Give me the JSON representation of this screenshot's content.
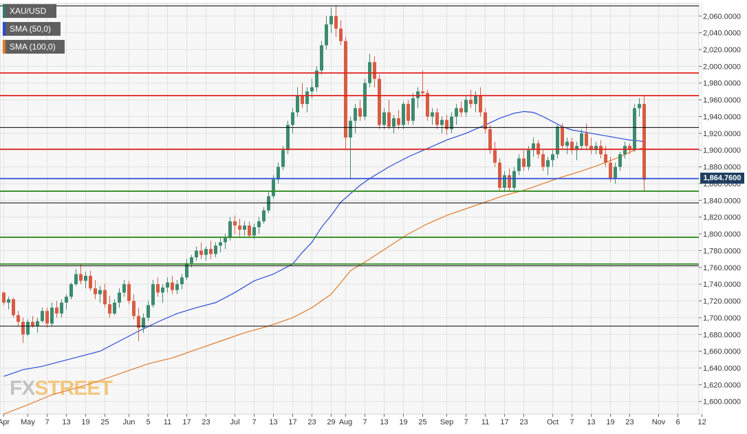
{
  "legend": {
    "items": [
      {
        "label": "XAU/USD",
        "color": "#2f7d6b"
      },
      {
        "label": "SMA (50,0)",
        "color": "#2b4bd6"
      },
      {
        "label": "SMA (100,0)",
        "color": "#e07a2a"
      }
    ]
  },
  "price_tag": {
    "label": "1,864.7600"
  },
  "logo": {
    "text_a": "FX",
    "text_b": "STREET"
  },
  "chart_data": {
    "type": "candlestick",
    "title": "",
    "xlabel": "",
    "ylabel": "",
    "ylim": [
      1585,
      2075
    ],
    "y_ticks": [
      {
        "value": 2060,
        "label": "2,060.0000"
      },
      {
        "value": 2040,
        "label": "2,040.0000"
      },
      {
        "value": 2020,
        "label": "2,020.0000"
      },
      {
        "value": 2000,
        "label": "2,000.0000"
      },
      {
        "value": 1980,
        "label": "1,980.0000"
      },
      {
        "value": 1960,
        "label": "1,960.0000"
      },
      {
        "value": 1940,
        "label": "1,940.0000"
      },
      {
        "value": 1920,
        "label": "1,920.0000"
      },
      {
        "value": 1900,
        "label": "1,900.0000"
      },
      {
        "value": 1880,
        "label": "1,880.0000"
      },
      {
        "value": 1860,
        "label": "1,860.0000"
      },
      {
        "value": 1840,
        "label": "1,840.0000"
      },
      {
        "value": 1820,
        "label": "1,820.0000"
      },
      {
        "value": 1800,
        "label": "1,800.0000"
      },
      {
        "value": 1780,
        "label": "1,780.0000"
      },
      {
        "value": 1760,
        "label": "1,760.0000"
      },
      {
        "value": 1740,
        "label": "1,740.0000"
      },
      {
        "value": 1720,
        "label": "1,720.0000"
      },
      {
        "value": 1700,
        "label": "1,700.0000"
      },
      {
        "value": 1680,
        "label": "1,680.0000"
      },
      {
        "value": 1660,
        "label": "1,660.0000"
      },
      {
        "value": 1640,
        "label": "1,640.0000"
      },
      {
        "value": 1620,
        "label": "1,620.0000"
      },
      {
        "value": 1600,
        "label": "1,600.0000"
      }
    ],
    "x_ticks": [
      {
        "label": "Apr",
        "i": 0
      },
      {
        "label": "May",
        "i": 5
      },
      {
        "label": "7",
        "i": 9
      },
      {
        "label": "13",
        "i": 13
      },
      {
        "label": "19",
        "i": 17
      },
      {
        "label": "25",
        "i": 21
      },
      {
        "label": "Jun",
        "i": 26
      },
      {
        "label": "5",
        "i": 30
      },
      {
        "label": "11",
        "i": 34
      },
      {
        "label": "17",
        "i": 38
      },
      {
        "label": "23",
        "i": 42
      },
      {
        "label": "Jul",
        "i": 48
      },
      {
        "label": "7",
        "i": 52
      },
      {
        "label": "13",
        "i": 56
      },
      {
        "label": "17",
        "i": 60
      },
      {
        "label": "23",
        "i": 64
      },
      {
        "label": "29",
        "i": 68
      },
      {
        "label": "Aug",
        "i": 71
      },
      {
        "label": "7",
        "i": 75
      },
      {
        "label": "13",
        "i": 79
      },
      {
        "label": "19",
        "i": 83
      },
      {
        "label": "25",
        "i": 87
      },
      {
        "label": "Sep",
        "i": 92
      },
      {
        "label": "7",
        "i": 96
      },
      {
        "label": "11",
        "i": 100
      },
      {
        "label": "17",
        "i": 104
      },
      {
        "label": "23",
        "i": 108
      },
      {
        "label": "Oct",
        "i": 114
      },
      {
        "label": "7",
        "i": 118
      },
      {
        "label": "13",
        "i": 122
      },
      {
        "label": "19",
        "i": 126
      },
      {
        "label": "23",
        "i": 130
      },
      {
        "label": "Nov",
        "i": 136
      },
      {
        "label": "6",
        "i": 140
      },
      {
        "label": "12",
        "i": 145
      }
    ],
    "n_slots": 148,
    "horizontal_levels": [
      {
        "value": 2072,
        "color": "#000000"
      },
      {
        "value": 1992,
        "color": "#e0201c"
      },
      {
        "value": 1965,
        "color": "#e0201c"
      },
      {
        "value": 1927,
        "color": "#000000"
      },
      {
        "value": 1901,
        "color": "#e0201c"
      },
      {
        "value": 1866,
        "color": "#2b4bd6"
      },
      {
        "value": 1851,
        "color": "#2f8a1e"
      },
      {
        "value": 1837,
        "color": "#000000"
      },
      {
        "value": 1796,
        "color": "#2f8a1e"
      },
      {
        "value": 1764,
        "color": "#2f8a1e"
      },
      {
        "value": 1762,
        "color": "#000000"
      },
      {
        "value": 1690,
        "color": "#000000"
      }
    ],
    "candles": [
      [
        0,
        1730,
        1731,
        1715,
        1718
      ],
      [
        1,
        1718,
        1725,
        1710,
        1722
      ],
      [
        2,
        1722,
        1724,
        1700,
        1703
      ],
      [
        3,
        1703,
        1708,
        1690,
        1695
      ],
      [
        4,
        1695,
        1700,
        1670,
        1680
      ],
      [
        5,
        1680,
        1698,
        1678,
        1695
      ],
      [
        6,
        1695,
        1702,
        1688,
        1690
      ],
      [
        7,
        1690,
        1700,
        1682,
        1696
      ],
      [
        8,
        1696,
        1712,
        1694,
        1708
      ],
      [
        9,
        1708,
        1712,
        1688,
        1693
      ],
      [
        10,
        1693,
        1718,
        1690,
        1712
      ],
      [
        11,
        1712,
        1720,
        1700,
        1705
      ],
      [
        12,
        1705,
        1722,
        1700,
        1718
      ],
      [
        13,
        1718,
        1728,
        1710,
        1725
      ],
      [
        14,
        1725,
        1742,
        1722,
        1740
      ],
      [
        15,
        1740,
        1758,
        1738,
        1752
      ],
      [
        16,
        1752,
        1765,
        1740,
        1744
      ],
      [
        17,
        1744,
        1755,
        1735,
        1750
      ],
      [
        18,
        1750,
        1756,
        1732,
        1735
      ],
      [
        19,
        1735,
        1745,
        1722,
        1728
      ],
      [
        20,
        1728,
        1738,
        1718,
        1733
      ],
      [
        21,
        1733,
        1740,
        1712,
        1716
      ],
      [
        22,
        1716,
        1726,
        1700,
        1705
      ],
      [
        23,
        1705,
        1722,
        1703,
        1718
      ],
      [
        24,
        1718,
        1735,
        1712,
        1730
      ],
      [
        25,
        1730,
        1745,
        1725,
        1740
      ],
      [
        26,
        1740,
        1744,
        1716,
        1720
      ],
      [
        27,
        1720,
        1728,
        1698,
        1702
      ],
      [
        28,
        1702,
        1712,
        1672,
        1688
      ],
      [
        29,
        1688,
        1705,
        1682,
        1700
      ],
      [
        30,
        1700,
        1720,
        1696,
        1715
      ],
      [
        31,
        1715,
        1745,
        1712,
        1740
      ],
      [
        32,
        1740,
        1748,
        1725,
        1730
      ],
      [
        33,
        1730,
        1740,
        1718,
        1736
      ],
      [
        34,
        1736,
        1748,
        1730,
        1742
      ],
      [
        35,
        1742,
        1750,
        1728,
        1733
      ],
      [
        36,
        1733,
        1745,
        1728,
        1740
      ],
      [
        37,
        1740,
        1752,
        1734,
        1748
      ],
      [
        38,
        1748,
        1770,
        1745,
        1765
      ],
      [
        39,
        1765,
        1775,
        1760,
        1772
      ],
      [
        40,
        1772,
        1785,
        1768,
        1780
      ],
      [
        41,
        1780,
        1790,
        1770,
        1775
      ],
      [
        42,
        1775,
        1785,
        1768,
        1782
      ],
      [
        43,
        1782,
        1792,
        1770,
        1776
      ],
      [
        44,
        1776,
        1790,
        1772,
        1786
      ],
      [
        45,
        1786,
        1795,
        1778,
        1790
      ],
      [
        46,
        1790,
        1800,
        1782,
        1795
      ],
      [
        47,
        1795,
        1820,
        1792,
        1815
      ],
      [
        48,
        1815,
        1822,
        1800,
        1810
      ],
      [
        49,
        1810,
        1818,
        1796,
        1805
      ],
      [
        50,
        1805,
        1815,
        1798,
        1810
      ],
      [
        51,
        1810,
        1815,
        1795,
        1798
      ],
      [
        52,
        1798,
        1812,
        1794,
        1808
      ],
      [
        53,
        1808,
        1820,
        1800,
        1815
      ],
      [
        54,
        1815,
        1832,
        1812,
        1828
      ],
      [
        55,
        1828,
        1850,
        1825,
        1845
      ],
      [
        56,
        1845,
        1870,
        1842,
        1865
      ],
      [
        57,
        1865,
        1885,
        1860,
        1880
      ],
      [
        58,
        1880,
        1905,
        1876,
        1900
      ],
      [
        59,
        1900,
        1935,
        1895,
        1930
      ],
      [
        60,
        1930,
        1950,
        1920,
        1945
      ],
      [
        61,
        1945,
        1975,
        1940,
        1965
      ],
      [
        62,
        1965,
        1980,
        1950,
        1955
      ],
      [
        63,
        1955,
        1975,
        1945,
        1970
      ],
      [
        64,
        1970,
        1985,
        1962,
        1975
      ],
      [
        65,
        1975,
        2000,
        1970,
        1995
      ],
      [
        66,
        1995,
        2030,
        1990,
        2025
      ],
      [
        67,
        2025,
        2060,
        2020,
        2050
      ],
      [
        68,
        2050,
        2070,
        2040,
        2060
      ],
      [
        69,
        2060,
        2073,
        2035,
        2045
      ],
      [
        70,
        2045,
        2055,
        2025,
        2030
      ],
      [
        71,
        2030,
        2035,
        1900,
        1915
      ],
      [
        72,
        1915,
        1940,
        1865,
        1935
      ],
      [
        73,
        1935,
        1955,
        1920,
        1950
      ],
      [
        74,
        1950,
        1960,
        1935,
        1940
      ],
      [
        75,
        1940,
        1985,
        1936,
        1980
      ],
      [
        76,
        1980,
        2015,
        1975,
        2005
      ],
      [
        77,
        2005,
        2012,
        1975,
        1985
      ],
      [
        78,
        1985,
        1990,
        1925,
        1930
      ],
      [
        79,
        1930,
        1950,
        1925,
        1945
      ],
      [
        80,
        1945,
        1960,
        1925,
        1928
      ],
      [
        81,
        1928,
        1942,
        1920,
        1938
      ],
      [
        82,
        1938,
        1948,
        1925,
        1930
      ],
      [
        83,
        1930,
        1958,
        1925,
        1955
      ],
      [
        84,
        1955,
        1960,
        1930,
        1935
      ],
      [
        85,
        1935,
        1968,
        1930,
        1962
      ],
      [
        86,
        1962,
        1975,
        1950,
        1970
      ],
      [
        87,
        1970,
        1995,
        1965,
        1968
      ],
      [
        88,
        1968,
        1972,
        1935,
        1940
      ],
      [
        89,
        1940,
        1950,
        1930,
        1945
      ],
      [
        90,
        1945,
        1950,
        1925,
        1930
      ],
      [
        91,
        1930,
        1940,
        1920,
        1936
      ],
      [
        92,
        1936,
        1942,
        1918,
        1925
      ],
      [
        93,
        1925,
        1945,
        1920,
        1940
      ],
      [
        94,
        1940,
        1955,
        1930,
        1950
      ],
      [
        95,
        1950,
        1958,
        1940,
        1945
      ],
      [
        96,
        1945,
        1965,
        1940,
        1960
      ],
      [
        97,
        1960,
        1972,
        1950,
        1955
      ],
      [
        98,
        1955,
        1970,
        1945,
        1965
      ],
      [
        99,
        1965,
        1975,
        1940,
        1945
      ],
      [
        100,
        1945,
        1950,
        1920,
        1925
      ],
      [
        101,
        1925,
        1930,
        1895,
        1900
      ],
      [
        102,
        1900,
        1910,
        1880,
        1885
      ],
      [
        103,
        1885,
        1890,
        1850,
        1855
      ],
      [
        104,
        1855,
        1875,
        1850,
        1870
      ],
      [
        105,
        1870,
        1878,
        1850,
        1855
      ],
      [
        106,
        1855,
        1880,
        1852,
        1875
      ],
      [
        107,
        1875,
        1895,
        1870,
        1890
      ],
      [
        108,
        1890,
        1900,
        1875,
        1880
      ],
      [
        109,
        1880,
        1905,
        1876,
        1900
      ],
      [
        110,
        1900,
        1915,
        1892,
        1908
      ],
      [
        111,
        1908,
        1912,
        1890,
        1895
      ],
      [
        112,
        1895,
        1900,
        1875,
        1880
      ],
      [
        113,
        1880,
        1892,
        1870,
        1888
      ],
      [
        114,
        1888,
        1900,
        1880,
        1895
      ],
      [
        115,
        1895,
        1930,
        1890,
        1928
      ],
      [
        116,
        1928,
        1932,
        1900,
        1905
      ],
      [
        117,
        1905,
        1915,
        1895,
        1910
      ],
      [
        118,
        1910,
        1915,
        1895,
        1900
      ],
      [
        119,
        1900,
        1910,
        1888,
        1905
      ],
      [
        120,
        1905,
        1925,
        1900,
        1920
      ],
      [
        121,
        1920,
        1932,
        1900,
        1905
      ],
      [
        122,
        1905,
        1915,
        1895,
        1900
      ],
      [
        123,
        1900,
        1910,
        1895,
        1905
      ],
      [
        124,
        1905,
        1912,
        1890,
        1895
      ],
      [
        125,
        1895,
        1905,
        1880,
        1885
      ],
      [
        126,
        1885,
        1892,
        1862,
        1866
      ],
      [
        127,
        1866,
        1885,
        1860,
        1880
      ],
      [
        128,
        1880,
        1898,
        1875,
        1895
      ],
      [
        129,
        1895,
        1910,
        1890,
        1905
      ],
      [
        130,
        1905,
        1908,
        1895,
        1900
      ],
      [
        131,
        1900,
        1955,
        1898,
        1950
      ],
      [
        132,
        1950,
        1962,
        1940,
        1955
      ],
      [
        133,
        1955,
        1965,
        1850,
        1864.76
      ]
    ],
    "sma50": [
      [
        0,
        1630
      ],
      [
        4,
        1638
      ],
      [
        8,
        1642
      ],
      [
        12,
        1648
      ],
      [
        16,
        1654
      ],
      [
        20,
        1660
      ],
      [
        24,
        1672
      ],
      [
        28,
        1684
      ],
      [
        32,
        1695
      ],
      [
        36,
        1705
      ],
      [
        40,
        1712
      ],
      [
        44,
        1718
      ],
      [
        48,
        1730
      ],
      [
        52,
        1744
      ],
      [
        56,
        1752
      ],
      [
        60,
        1764
      ],
      [
        62,
        1778
      ],
      [
        64,
        1790
      ],
      [
        66,
        1808
      ],
      [
        68,
        1822
      ],
      [
        70,
        1838
      ],
      [
        72,
        1848
      ],
      [
        74,
        1858
      ],
      [
        76,
        1866
      ],
      [
        80,
        1880
      ],
      [
        84,
        1892
      ],
      [
        88,
        1902
      ],
      [
        92,
        1912
      ],
      [
        96,
        1920
      ],
      [
        100,
        1930
      ],
      [
        103,
        1938
      ],
      [
        106,
        1944
      ],
      [
        108,
        1946
      ],
      [
        110,
        1945
      ],
      [
        112,
        1940
      ],
      [
        114,
        1934
      ],
      [
        116,
        1928
      ],
      [
        118,
        1924
      ],
      [
        120,
        1922
      ],
      [
        122,
        1920
      ],
      [
        124,
        1918
      ],
      [
        126,
        1916
      ],
      [
        128,
        1914
      ],
      [
        130,
        1912
      ],
      [
        132,
        1911
      ],
      [
        133,
        1910
      ]
    ],
    "sma100": [
      [
        0,
        1585
      ],
      [
        5,
        1596
      ],
      [
        10,
        1608
      ],
      [
        15,
        1616
      ],
      [
        20,
        1625
      ],
      [
        25,
        1635
      ],
      [
        30,
        1645
      ],
      [
        35,
        1652
      ],
      [
        40,
        1662
      ],
      [
        45,
        1672
      ],
      [
        50,
        1682
      ],
      [
        55,
        1690
      ],
      [
        60,
        1700
      ],
      [
        64,
        1712
      ],
      [
        68,
        1728
      ],
      [
        70,
        1742
      ],
      [
        72,
        1756
      ],
      [
        76,
        1770
      ],
      [
        80,
        1785
      ],
      [
        84,
        1800
      ],
      [
        88,
        1812
      ],
      [
        92,
        1822
      ],
      [
        96,
        1830
      ],
      [
        100,
        1838
      ],
      [
        104,
        1846
      ],
      [
        108,
        1852
      ],
      [
        112,
        1860
      ],
      [
        116,
        1868
      ],
      [
        120,
        1875
      ],
      [
        124,
        1883
      ],
      [
        128,
        1892
      ],
      [
        131,
        1900
      ],
      [
        133,
        1903
      ]
    ]
  }
}
